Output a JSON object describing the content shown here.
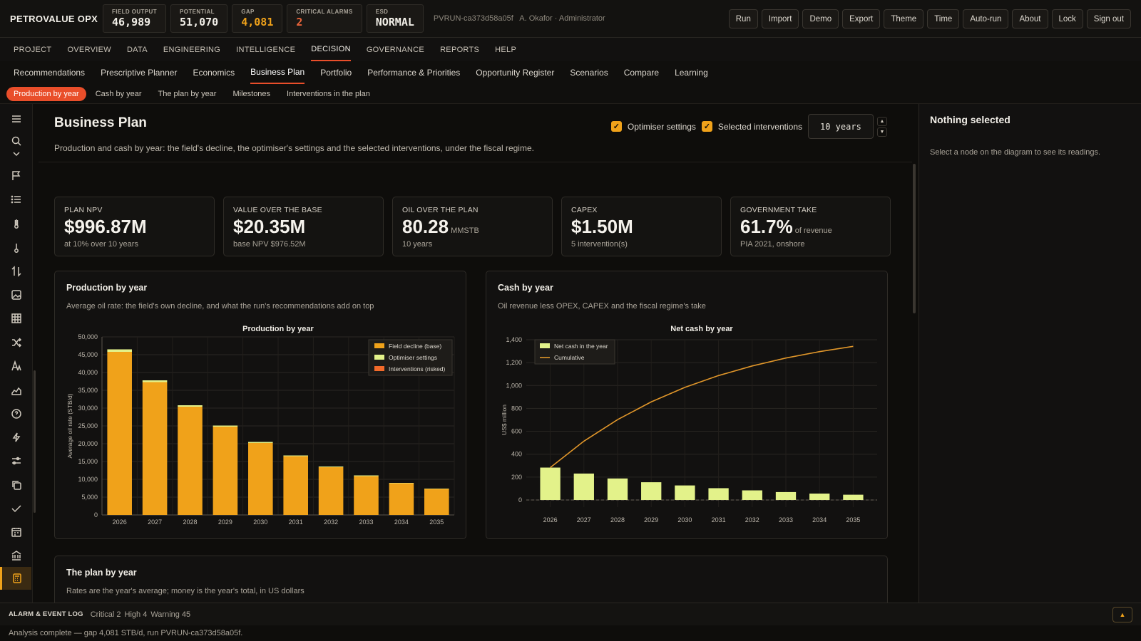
{
  "app": {
    "brand": "PETROVALUE OPX"
  },
  "kpis": [
    {
      "label": "FIELD OUTPUT",
      "value": "46,989",
      "tone": "normal"
    },
    {
      "label": "POTENTIAL",
      "value": "51,070",
      "tone": "normal"
    },
    {
      "label": "GAP",
      "value": "4,081",
      "tone": "warn"
    },
    {
      "label": "CRITICAL ALARMS",
      "value": "2",
      "tone": "crit"
    },
    {
      "label": "ESD",
      "value": "NORMAL",
      "tone": "normal"
    }
  ],
  "run": {
    "id": "PVRUN-ca373d58a05f",
    "user": "A. Okafor · Administrator"
  },
  "actions": [
    "Run",
    "Import",
    "Demo",
    "Export",
    "Theme",
    "Time",
    "Auto-run",
    "About",
    "Lock",
    "Sign out"
  ],
  "main_nav": [
    "PROJECT",
    "OVERVIEW",
    "DATA",
    "ENGINEERING",
    "INTELLIGENCE",
    "DECISION",
    "GOVERNANCE",
    "REPORTS",
    "HELP"
  ],
  "main_nav_active": 5,
  "sub_nav": [
    "Recommendations",
    "Prescriptive Planner",
    "Economics",
    "Business Plan",
    "Portfolio",
    "Performance & Priorities",
    "Opportunity Register",
    "Scenarios",
    "Compare",
    "Learning"
  ],
  "sub_nav_active": 3,
  "chips": [
    "Production by year",
    "Cash by year",
    "The plan by year",
    "Milestones",
    "Interventions in the plan"
  ],
  "chips_active": 0,
  "rail_icons": [
    "menu-icon",
    "search-icon",
    "chevron-icon",
    "flag-icon",
    "list-icon",
    "thermometer-icon",
    "thermometer-alt-icon",
    "transfer-icon",
    "image-icon",
    "grid-icon",
    "shuffle-icon",
    "text-icon",
    "area-chart-icon",
    "help-icon",
    "bolt-icon",
    "sliders-icon",
    "copy-icon",
    "check-icon",
    "calendar-icon",
    "bank-icon",
    "calculator-icon"
  ],
  "page": {
    "title": "Business Plan",
    "subtitle": "Production and cash by year: the field's decline, the optimiser's settings and the selected interventions, under the fiscal regime.",
    "optimiser_label": "Optimiser settings",
    "interventions_label": "Selected interventions",
    "years_value": "10 years"
  },
  "kpi_cards": [
    {
      "title": "PLAN NPV",
      "value": "$996.87M",
      "unit": "",
      "sub": "at 10% over 10 years"
    },
    {
      "title": "VALUE OVER THE BASE",
      "value": "$20.35M",
      "unit": "",
      "sub": "base NPV $976.52M"
    },
    {
      "title": "OIL OVER THE PLAN",
      "value": "80.28",
      "unit": "MMSTB",
      "sub": "10 years"
    },
    {
      "title": "CAPEX",
      "value": "$1.50M",
      "unit": "",
      "sub": "5 intervention(s)"
    },
    {
      "title": "GOVERNMENT TAKE",
      "value": "61.7%",
      "unit": "of revenue",
      "sub": "PIA 2021, onshore"
    }
  ],
  "panels": {
    "production": {
      "heading": "Production by year",
      "desc": "Average oil rate: the field's own decline, and what the run's recommendations add on top"
    },
    "cash": {
      "heading": "Cash by year",
      "desc": "Oil revenue less OPEX, CAPEX and the fiscal regime's take"
    },
    "plan": {
      "heading": "The plan by year",
      "desc": "Rates are the year's average; money is the year's total, in US dollars"
    }
  },
  "right_panel": {
    "heading": "Nothing selected",
    "hint": "Select a node on the diagram to see its readings."
  },
  "alarm_log": {
    "title": "ALARM & EVENT LOG",
    "counts": [
      "Critical 2",
      "High 4",
      "Warning 45"
    ]
  },
  "status": "Analysis complete — gap 4,081 STB/d, run PVRUN-ca373d58a05f.",
  "colors": {
    "accent": "#e94e2a",
    "amber": "#f0a21a",
    "lime": "#e3f28a",
    "orange_red": "#f26a2a"
  },
  "chart_data": [
    {
      "type": "bar",
      "title": "Production by year",
      "xlabel": "",
      "ylabel": "Average oil rate (STB/d)",
      "categories": [
        "2026",
        "2027",
        "2028",
        "2029",
        "2030",
        "2031",
        "2032",
        "2033",
        "2034",
        "2035"
      ],
      "stacked": true,
      "series": [
        {
          "name": "Field decline (base)",
          "color": "#f0a21a",
          "values": [
            45800,
            37300,
            30400,
            24800,
            20200,
            16500,
            13400,
            10900,
            8900,
            7300
          ]
        },
        {
          "name": "Optimiser settings",
          "color": "#e3f28a",
          "values": [
            700,
            500,
            400,
            300,
            300,
            200,
            200,
            200,
            100,
            100
          ]
        },
        {
          "name": "Interventions (risked)",
          "color": "#f26a2a",
          "values": [
            0,
            0,
            0,
            0,
            0,
            0,
            0,
            0,
            0,
            0
          ]
        }
      ],
      "ylim": [
        0,
        50000
      ],
      "yticks": [
        0,
        5000,
        10000,
        15000,
        20000,
        25000,
        30000,
        35000,
        40000,
        45000,
        50000
      ],
      "grid": true,
      "legend": "top-right"
    },
    {
      "type": "bar",
      "title": "Net cash by year",
      "xlabel": "",
      "ylabel": "US$ million",
      "categories": [
        "2026",
        "2027",
        "2028",
        "2029",
        "2030",
        "2031",
        "2032",
        "2033",
        "2034",
        "2035"
      ],
      "series": [
        {
          "name": "Net cash in the year",
          "kind": "bar",
          "color": "#e3f28a",
          "values": [
            283,
            231,
            188,
            155,
            127,
            103,
            84,
            69,
            56,
            46
          ]
        },
        {
          "name": "Cumulative",
          "kind": "line",
          "color": "#e0962a",
          "values": [
            283,
            514,
            702,
            857,
            984,
            1087,
            1171,
            1240,
            1296,
            1342
          ]
        }
      ],
      "ylim": [
        0,
        1400
      ],
      "yticks": [
        0,
        200,
        400,
        600,
        800,
        1000,
        1200,
        1400
      ],
      "grid": true,
      "legend": "top-left"
    }
  ]
}
